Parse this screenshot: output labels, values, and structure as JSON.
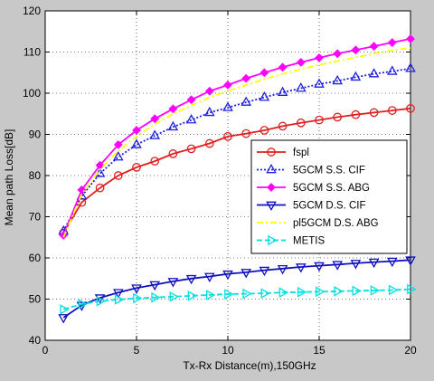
{
  "chart_data": {
    "type": "line",
    "title": "",
    "xlabel": "Tx-Rx Distance(m),150GHz",
    "ylabel": "Mean path Loss[dB]",
    "xlim": [
      0,
      20
    ],
    "ylim": [
      40,
      120
    ],
    "xticks": [
      0,
      5,
      10,
      15,
      20
    ],
    "yticks": [
      40,
      50,
      60,
      70,
      80,
      90,
      100,
      110,
      120
    ],
    "grid": true,
    "legend_position": "center-right",
    "x": [
      1,
      2,
      3,
      4,
      5,
      6,
      7,
      8,
      9,
      10,
      11,
      12,
      13,
      14,
      15,
      16,
      17,
      18,
      19,
      20
    ],
    "series": [
      {
        "name": "fspl",
        "color": "#e02020",
        "line_style": "solid",
        "marker": "circle",
        "values": [
          66.0,
          73.5,
          77.0,
          80.0,
          82.0,
          83.5,
          85.3,
          86.5,
          87.8,
          89.5,
          90.2,
          91.0,
          92.0,
          92.8,
          93.5,
          94.2,
          94.8,
          95.3,
          95.8,
          96.3
        ]
      },
      {
        "name": "5GCM S.S. CIF",
        "color": "#2020e0",
        "line_style": "dotted",
        "marker": "triangle-up",
        "values": [
          66.5,
          75.0,
          80.5,
          84.5,
          87.5,
          89.7,
          91.8,
          93.5,
          95.3,
          96.5,
          97.8,
          99.0,
          100.2,
          101.2,
          102.2,
          103.0,
          103.9,
          104.7,
          105.3,
          106.0
        ]
      },
      {
        "name": "5GCM  S.S. ABG",
        "color": "#ff00ff",
        "line_style": "solid",
        "marker": "diamond",
        "values": [
          65.5,
          76.5,
          82.5,
          87.5,
          91.0,
          93.8,
          96.2,
          98.4,
          100.5,
          102.0,
          103.6,
          105.0,
          106.3,
          107.5,
          108.6,
          109.6,
          110.5,
          111.4,
          112.3,
          113.2
        ]
      },
      {
        "name": "5GCM D.S. CIF",
        "color": "#1010c0",
        "line_style": "solid",
        "marker": "triangle-down",
        "values": [
          45.5,
          48.5,
          50.3,
          51.6,
          52.7,
          53.5,
          54.3,
          55.0,
          55.5,
          56.1,
          56.5,
          57.0,
          57.4,
          57.8,
          58.1,
          58.4,
          58.7,
          59.0,
          59.2,
          59.5
        ]
      },
      {
        "name": "pl5GCM D.S. ABG",
        "color": "#ffff00",
        "line_style": "dashdot",
        "marker": "none",
        "values": [
          65.0,
          75.5,
          81.5,
          86.0,
          89.5,
          92.5,
          95.0,
          97.0,
          99.0,
          100.5,
          102.0,
          103.4,
          104.7,
          105.8,
          106.9,
          107.8,
          108.7,
          109.6,
          110.4,
          111.0
        ]
      },
      {
        "name": "METIS",
        "color": "#00e0e0",
        "line_style": "dashed",
        "marker": "triangle-right",
        "values": [
          47.5,
          48.8,
          49.5,
          49.9,
          50.2,
          50.4,
          50.6,
          50.8,
          51.0,
          51.2,
          51.3,
          51.4,
          51.6,
          51.7,
          51.8,
          51.9,
          52.0,
          52.1,
          52.2,
          52.4
        ]
      }
    ]
  }
}
